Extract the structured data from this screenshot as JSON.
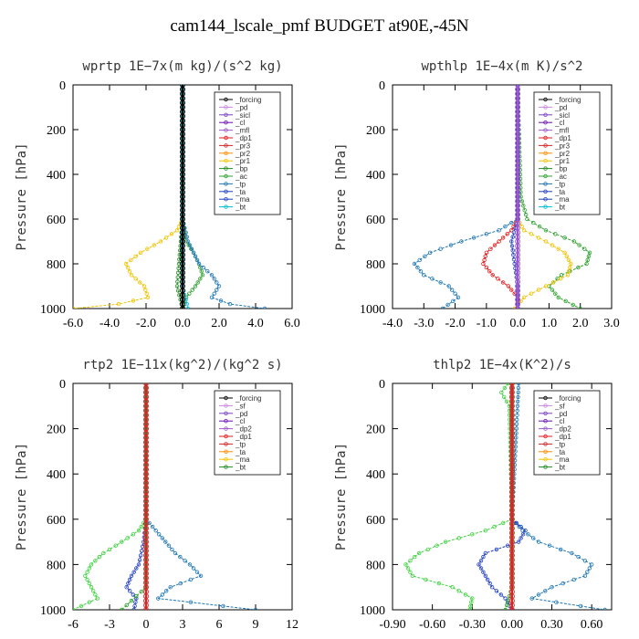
{
  "figure_title": "cam144_lscale_pmf  BUDGET at90E,-45N",
  "chart_data": [
    {
      "type": "line",
      "title": "wprtp   1E−7x(m kg)/(s^2 kg)",
      "ylabel": "Pressure [hPa]",
      "xlim": [
        -6.0,
        6.0
      ],
      "ylim": [
        1000,
        0
      ],
      "xticks": [
        "-6.0",
        "-4.0",
        "-2.0",
        "0.0",
        "2.0",
        "4.0",
        "6.0"
      ],
      "xtick_values": [
        -6,
        -4,
        -2,
        0,
        2,
        4,
        6
      ],
      "yticks": [
        "0",
        "200",
        "400",
        "600",
        "800",
        "1000"
      ],
      "ytick_values": [
        0,
        200,
        400,
        600,
        800,
        1000
      ],
      "legend": [
        "_forcing",
        "_pd",
        "_sicl",
        "_cl",
        "_mfl",
        "_dp1",
        "_pr3",
        "_pr2",
        "_pr1",
        "_bp",
        "_ac",
        "_tp",
        "_ta",
        "_ma",
        "_bt"
      ],
      "series": [
        {
          "name": "_pr1",
          "color": "#f2c200",
          "p": [
            0,
            600,
            650,
            700,
            750,
            800,
            850,
            900,
            950,
            980,
            1000
          ],
          "x": [
            0,
            0,
            -0.3,
            -1.2,
            -2.3,
            -3.1,
            -2.8,
            -2.1,
            -1.9,
            -3.5,
            -6.0
          ]
        },
        {
          "name": "_ac",
          "color": "#2ca02c",
          "p": [
            0,
            600,
            700,
            750,
            800,
            850,
            900,
            950,
            1000
          ],
          "x": [
            0,
            0,
            0.2,
            0.6,
            0.9,
            1.1,
            0.7,
            0.2,
            0
          ]
        },
        {
          "name": "_tp",
          "color": "#1f77b4",
          "p": [
            0,
            600,
            700,
            750,
            800,
            850,
            900,
            950,
            980,
            1000
          ],
          "x": [
            0,
            0,
            0.3,
            0.6,
            0.9,
            1.6,
            2.0,
            1.6,
            2.6,
            4.5
          ]
        },
        {
          "name": "_bp",
          "color": "#228b22",
          "p": [
            0,
            600,
            800,
            900,
            1000
          ],
          "x": [
            0,
            0,
            -0.2,
            -0.3,
            0
          ]
        },
        {
          "name": "_bt",
          "color": "#00bcd4",
          "p": [
            0,
            900,
            1000
          ],
          "x": [
            0,
            0,
            0.3
          ]
        },
        {
          "name": "_forcing",
          "color": "#000000",
          "p": [
            0,
            200,
            400,
            600,
            800,
            1000
          ],
          "x": [
            0,
            0,
            0,
            0,
            0,
            0
          ]
        }
      ]
    },
    {
      "type": "line",
      "title": "wpthlp   1E−4x(m K)/s^2",
      "ylabel": "Pressure [hPa]",
      "xlim": [
        -4.0,
        3.0
      ],
      "ylim": [
        1000,
        0
      ],
      "xticks": [
        "-4.0",
        "-3.0",
        "-2.0",
        "-1.0",
        "0.0",
        "1.0",
        "2.0",
        "3.0"
      ],
      "xtick_values": [
        -4,
        -3,
        -2,
        -1,
        0,
        1,
        2,
        3
      ],
      "yticks": [
        "0",
        "200",
        "400",
        "600",
        "800",
        "1000"
      ],
      "ytick_values": [
        0,
        200,
        400,
        600,
        800,
        1000
      ],
      "legend": [
        "_forcing",
        "_pd",
        "_sicl",
        "_cl",
        "_mfl",
        "_dp1",
        "_pr3",
        "_pr2",
        "_pr1",
        "_bp",
        "_ac",
        "_tp",
        "_ta",
        "_ma",
        "_bt"
      ],
      "series": [
        {
          "name": "_tp",
          "color": "#1f77b4",
          "p": [
            0,
            600,
            650,
            700,
            750,
            800,
            850,
            900,
            950,
            1000
          ],
          "x": [
            0,
            0,
            -0.6,
            -1.8,
            -2.8,
            -3.3,
            -3.0,
            -2.2,
            -1.9,
            -2.4
          ]
        },
        {
          "name": "_ac",
          "color": "#2ca02c",
          "p": [
            0,
            500,
            600,
            650,
            700,
            750,
            800,
            850,
            900,
            950,
            1000
          ],
          "x": [
            0,
            0.1,
            0.3,
            0.9,
            1.8,
            2.3,
            2.2,
            1.4,
            1.0,
            1.3,
            2.0
          ]
        },
        {
          "name": "_pr1",
          "color": "#f2c200",
          "p": [
            0,
            600,
            650,
            700,
            750,
            800,
            850,
            900,
            950,
            1000
          ],
          "x": [
            0,
            0,
            0.2,
            0.9,
            1.5,
            1.7,
            1.6,
            0.9,
            0.2,
            -0.1
          ]
        },
        {
          "name": "_pr3",
          "color": "#e31a1c",
          "p": [
            0,
            600,
            650,
            700,
            750,
            800,
            850,
            900,
            950,
            1000
          ],
          "x": [
            0,
            0,
            -0.2,
            -0.6,
            -1.0,
            -1.1,
            -0.8,
            -0.3,
            0,
            0
          ]
        },
        {
          "name": "_ma",
          "color": "#1f3fbf",
          "p": [
            0,
            600,
            700,
            800,
            900,
            1000
          ],
          "x": [
            0,
            0,
            -0.2,
            -0.1,
            0,
            0
          ]
        },
        {
          "name": "_forcing",
          "color": "#9b59d0",
          "p": [
            0,
            200,
            400,
            600,
            800,
            1000
          ],
          "x": [
            0,
            0,
            0,
            0,
            0,
            0
          ]
        }
      ]
    },
    {
      "type": "line",
      "title": "rtp2   1E−11x(kg^2)/(kg^2 s)",
      "ylabel": "Pressure [hPa]",
      "xlim": [
        -6,
        12
      ],
      "ylim": [
        1000,
        0
      ],
      "xticks": [
        "-6",
        "-3",
        "0",
        "3",
        "6",
        "9",
        "12"
      ],
      "xtick_values": [
        -6,
        -3,
        0,
        3,
        6,
        9,
        12
      ],
      "yticks": [
        "0",
        "200",
        "400",
        "600",
        "800",
        "1000"
      ],
      "ytick_values": [
        0,
        200,
        400,
        600,
        800,
        1000
      ],
      "legend": [
        "_forcing",
        "_sf",
        "_pd",
        "_cl",
        "_dp2",
        "_dp1",
        "_tp",
        "_ta",
        "_ma",
        "_bt"
      ],
      "series": [
        {
          "name": "_dp1",
          "color": "#3fd23f",
          "p": [
            0,
            600,
            650,
            700,
            750,
            800,
            850,
            900,
            950,
            1000
          ],
          "x": [
            0,
            0,
            -0.6,
            -2.0,
            -3.5,
            -4.5,
            -5.0,
            -4.5,
            -4.0,
            -6.0
          ]
        },
        {
          "name": "_tp",
          "color": "#1f77b4",
          "p": [
            0,
            600,
            650,
            700,
            750,
            800,
            850,
            900,
            950,
            1000
          ],
          "x": [
            0,
            0,
            0.8,
            1.6,
            2.4,
            3.6,
            4.5,
            2.0,
            1.0,
            9.0
          ]
        },
        {
          "name": "_ta",
          "color": "#1f3fbf",
          "p": [
            0,
            600,
            700,
            800,
            850,
            900,
            950,
            1000
          ],
          "x": [
            0,
            0,
            -0.2,
            -0.6,
            -1.2,
            -1.6,
            -0.8,
            -1.0
          ]
        },
        {
          "name": "_dp2",
          "color": "#2ca02c",
          "p": [
            0,
            900,
            1000
          ],
          "x": [
            0,
            0,
            -2.0
          ]
        },
        {
          "name": "_forcing",
          "color": "#d62728",
          "p": [
            0,
            200,
            400,
            600,
            800,
            1000
          ],
          "x": [
            0,
            0,
            0,
            0,
            0,
            0
          ]
        }
      ]
    },
    {
      "type": "line",
      "title": "thlp2   1E−4x(K^2)/s",
      "ylabel": "Pressure [hPa]",
      "xlim": [
        -0.9,
        0.75
      ],
      "ylim": [
        1000,
        0
      ],
      "xticks": [
        "-0.90",
        "-0.60",
        "-0.30",
        "0.00",
        "0.30",
        "0.60"
      ],
      "xtick_values": [
        -0.9,
        -0.6,
        -0.3,
        0,
        0.3,
        0.6
      ],
      "yticks": [
        "0",
        "200",
        "400",
        "600",
        "800",
        "1000"
      ],
      "ytick_values": [
        0,
        200,
        400,
        600,
        800,
        1000
      ],
      "legend": [
        "_forcing",
        "_sf",
        "_pd",
        "_cl",
        "_dp2",
        "_dp1",
        "_tp",
        "_ta",
        "_ma",
        "_bt"
      ],
      "series": [
        {
          "name": "_dp1",
          "color": "#3fd23f",
          "p": [
            0,
            40,
            100,
            600,
            650,
            700,
            750,
            800,
            850,
            900,
            950,
            1000
          ],
          "x": [
            -0.03,
            -0.08,
            -0.02,
            0,
            -0.2,
            -0.5,
            -0.7,
            -0.8,
            -0.75,
            -0.45,
            -0.3,
            -0.32
          ]
        },
        {
          "name": "_tp",
          "color": "#1f77b4",
          "p": [
            0,
            600,
            650,
            700,
            750,
            800,
            850,
            900,
            950,
            1000
          ],
          "x": [
            0.05,
            0,
            0.08,
            0.2,
            0.45,
            0.6,
            0.55,
            0.3,
            0.15,
            0.7
          ]
        },
        {
          "name": "_ta",
          "color": "#1f3fbf",
          "p": [
            0,
            600,
            650,
            700,
            750,
            800,
            850,
            900,
            950,
            1000
          ],
          "x": [
            0,
            0,
            0.1,
            0.05,
            -0.2,
            -0.25,
            -0.2,
            -0.15,
            -0.05,
            0
          ]
        },
        {
          "name": "_dp2",
          "color": "#2ca02c",
          "p": [
            0,
            900,
            1000
          ],
          "x": [
            0,
            0,
            -0.05
          ]
        },
        {
          "name": "_forcing",
          "color": "#d62728",
          "p": [
            0,
            200,
            400,
            600,
            800,
            1000
          ],
          "x": [
            0,
            0,
            0,
            0,
            0,
            0
          ]
        }
      ]
    }
  ]
}
